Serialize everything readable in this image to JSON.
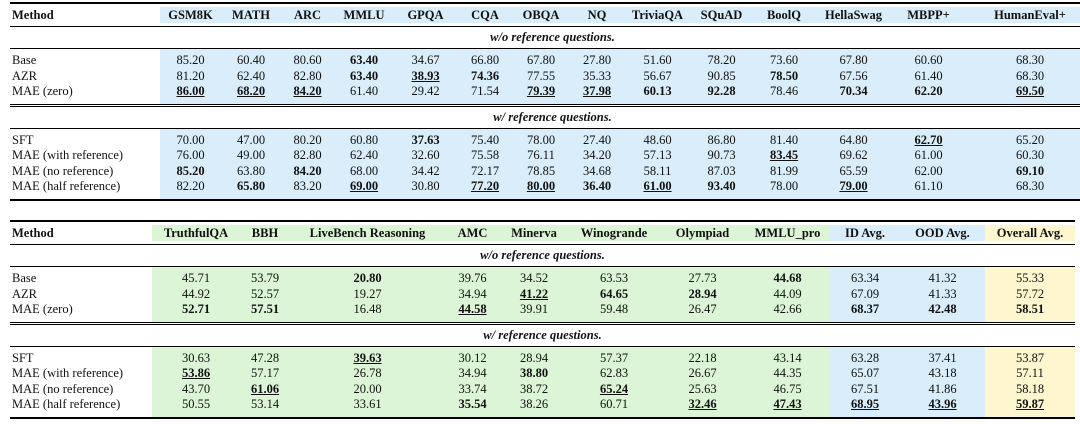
{
  "tables": [
    {
      "header": [
        "Method",
        "GSM8K",
        "MATH",
        "ARC",
        "MMLU",
        "GPQA",
        "CQA",
        "OBQA",
        "NQ",
        "TriviaQA",
        "SQuAD",
        "BoolQ",
        "HellaSwag",
        "MBPP+",
        "HumanEval+"
      ],
      "column_colors": [
        "#d9eefa",
        "#d9eefa",
        "#d9eefa",
        "#d9eefa",
        "#d9eefa",
        "#d9eefa",
        "#d9eefa",
        "#d9eefa",
        "#d9eefa",
        "#d9eefa",
        "#d9eefa",
        "#d9eefa",
        "#d9eefa",
        "#d9eefa"
      ],
      "sections": [
        {
          "label": "w/o reference questions.",
          "rows": [
            {
              "method": "Base",
              "values": [
                "85.20",
                "60.40",
                "80.60",
                "63.40",
                "34.67",
                "66.80",
                "67.80",
                "27.80",
                "51.60",
                "78.20",
                "73.60",
                "67.80",
                "60.60",
                "68.30"
              ],
              "bold": [
                3
              ],
              "underline": []
            },
            {
              "method": "AZR",
              "values": [
                "81.20",
                "62.40",
                "82.80",
                "63.40",
                "38.93",
                "74.36",
                "77.55",
                "35.33",
                "56.67",
                "90.85",
                "78.50",
                "67.56",
                "61.40",
                "68.30"
              ],
              "bold": [
                3,
                4,
                5,
                10
              ],
              "underline": [
                4
              ]
            },
            {
              "method": "MAE (zero)",
              "values": [
                "86.00",
                "68.20",
                "84.20",
                "61.40",
                "29.42",
                "71.54",
                "79.39",
                "37.98",
                "60.13",
                "92.28",
                "78.46",
                "70.34",
                "62.20",
                "69.50"
              ],
              "bold": [
                0,
                1,
                2,
                6,
                7,
                8,
                9,
                11,
                12,
                13
              ],
              "underline": [
                0,
                1,
                2,
                6,
                7,
                13
              ]
            }
          ]
        },
        {
          "label": "w/ reference questions.",
          "rows": [
            {
              "method": "SFT",
              "values": [
                "70.00",
                "47.00",
                "80.20",
                "60.80",
                "37.63",
                "75.40",
                "78.00",
                "27.40",
                "48.60",
                "86.80",
                "81.40",
                "64.80",
                "62.70",
                "65.20"
              ],
              "bold": [
                4,
                12
              ],
              "underline": [
                12
              ]
            },
            {
              "method": "MAE (with reference)",
              "values": [
                "76.00",
                "49.00",
                "82.80",
                "62.40",
                "32.60",
                "75.58",
                "76.11",
                "34.20",
                "57.13",
                "90.73",
                "83.45",
                "69.62",
                "61.00",
                "60.30"
              ],
              "bold": [
                10
              ],
              "underline": [
                10
              ]
            },
            {
              "method": "MAE (no reference)",
              "values": [
                "85.20",
                "63.80",
                "84.20",
                "68.00",
                "34.42",
                "72.17",
                "78.85",
                "34.68",
                "58.11",
                "87.03",
                "81.99",
                "65.59",
                "62.00",
                "69.10"
              ],
              "bold": [
                0,
                2,
                13
              ],
              "underline": []
            },
            {
              "method": "MAE (half reference)",
              "values": [
                "82.20",
                "65.80",
                "83.20",
                "69.00",
                "30.80",
                "77.20",
                "80.00",
                "36.40",
                "61.00",
                "93.40",
                "78.00",
                "79.00",
                "61.10",
                "68.30"
              ],
              "bold": [
                1,
                3,
                5,
                6,
                7,
                8,
                9,
                11
              ],
              "underline": [
                3,
                5,
                6,
                8,
                11
              ]
            }
          ]
        }
      ]
    },
    {
      "header": [
        "Method",
        "TruthfulQA",
        "BBH",
        "LiveBench Reasoning",
        "AMC",
        "Minerva",
        "Winogrande",
        "Olympiad",
        "MMLU_pro",
        "ID Avg.",
        "OOD Avg.",
        "Overall Avg."
      ],
      "column_colors": [
        "#dcf5d6",
        "#dcf5d6",
        "#dcf5d6",
        "#dcf5d6",
        "#dcf5d6",
        "#dcf5d6",
        "#dcf5d6",
        "#dcf5d6",
        "#d9eefa",
        "#d9eefa",
        "#fdf6cf"
      ],
      "sections": [
        {
          "label": "w/o reference questions.",
          "rows": [
            {
              "method": "Base",
              "values": [
                "45.71",
                "53.79",
                "20.80",
                "39.76",
                "34.52",
                "63.53",
                "27.73",
                "44.68",
                "63.34",
                "41.32",
                "55.33"
              ],
              "bold": [
                2,
                7
              ],
              "underline": []
            },
            {
              "method": "AZR",
              "values": [
                "44.92",
                "52.57",
                "19.27",
                "34.94",
                "41.22",
                "64.65",
                "28.94",
                "44.09",
                "67.09",
                "41.33",
                "57.72"
              ],
              "bold": [
                4,
                5,
                6
              ],
              "underline": [
                4
              ]
            },
            {
              "method": "MAE (zero)",
              "values": [
                "52.71",
                "57.51",
                "16.48",
                "44.58",
                "39.91",
                "59.48",
                "26.47",
                "42.66",
                "68.37",
                "42.48",
                "58.51"
              ],
              "bold": [
                0,
                1,
                3,
                8,
                9,
                10
              ],
              "underline": [
                3
              ]
            }
          ]
        },
        {
          "label": "w/ reference questions.",
          "rows": [
            {
              "method": "SFT",
              "values": [
                "30.63",
                "47.28",
                "39.63",
                "30.12",
                "28.94",
                "57.37",
                "22.18",
                "43.14",
                "63.28",
                "37.41",
                "53.87"
              ],
              "bold": [
                2
              ],
              "underline": [
                2
              ]
            },
            {
              "method": "MAE (with reference)",
              "values": [
                "53.86",
                "57.17",
                "26.78",
                "34.94",
                "38.80",
                "62.83",
                "26.67",
                "44.35",
                "65.07",
                "43.18",
                "57.11"
              ],
              "bold": [
                0,
                4
              ],
              "underline": [
                0
              ]
            },
            {
              "method": "MAE (no reference)",
              "values": [
                "43.70",
                "61.06",
                "20.00",
                "33.74",
                "38.72",
                "65.24",
                "25.63",
                "46.75",
                "67.51",
                "41.86",
                "58.18"
              ],
              "bold": [
                1,
                5
              ],
              "underline": [
                1,
                5
              ]
            },
            {
              "method": "MAE (half reference)",
              "values": [
                "50.55",
                "53.14",
                "33.61",
                "35.54",
                "38.26",
                "60.71",
                "32.46",
                "47.43",
                "68.95",
                "43.96",
                "59.87"
              ],
              "bold": [
                3,
                6,
                7,
                8,
                9,
                10
              ],
              "underline": [
                6,
                7,
                8,
                9,
                10
              ]
            }
          ]
        }
      ]
    }
  ]
}
